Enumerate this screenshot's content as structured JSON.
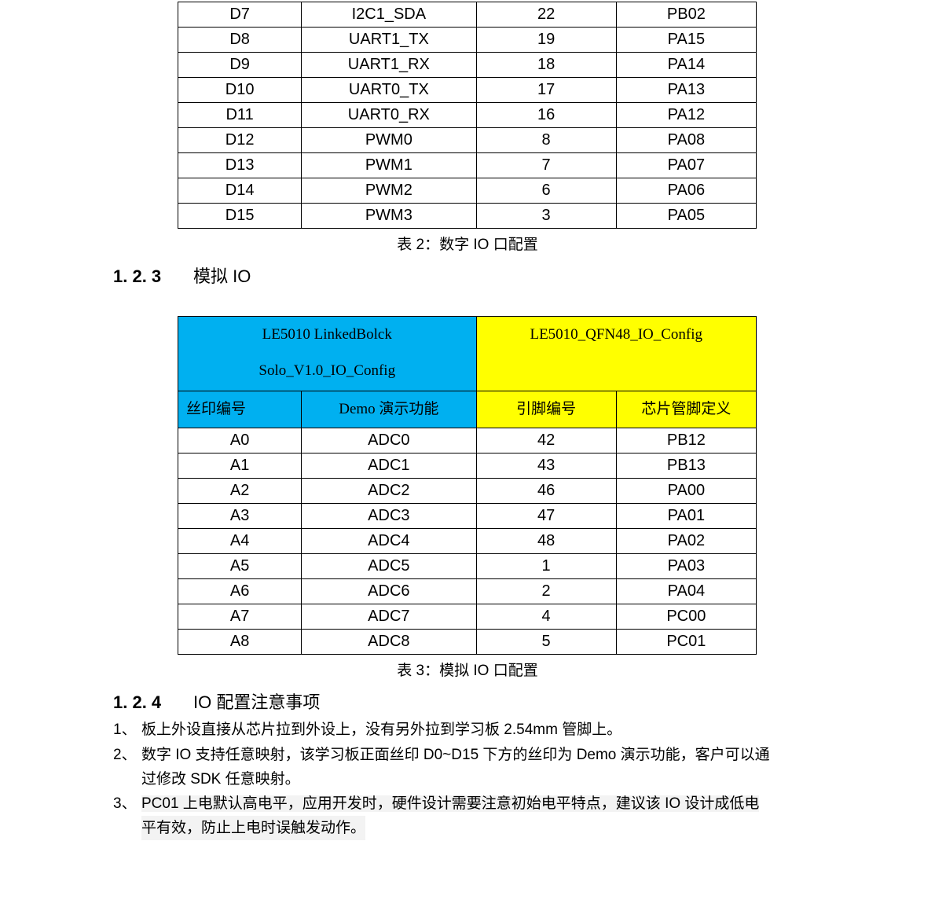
{
  "digital_table": {
    "rows": [
      [
        "D7",
        "I2C1_SDA",
        "22",
        "PB02"
      ],
      [
        "D8",
        "UART1_TX",
        "19",
        "PA15"
      ],
      [
        "D9",
        "UART1_RX",
        "18",
        "PA14"
      ],
      [
        "D10",
        "UART0_TX",
        "17",
        "PA13"
      ],
      [
        "D11",
        "UART0_RX",
        "16",
        "PA12"
      ],
      [
        "D12",
        "PWM0",
        "8",
        "PA08"
      ],
      [
        "D13",
        "PWM1",
        "7",
        "PA07"
      ],
      [
        "D14",
        "PWM2",
        "6",
        "PA06"
      ],
      [
        "D15",
        "PWM3",
        "3",
        "PA05"
      ]
    ],
    "caption": "表 2：数字 IO 口配置"
  },
  "section_123": {
    "number": "1. 2. 3",
    "title": "模拟 IO"
  },
  "analog_table": {
    "group_left_line1": "LE5010 LinkedBolck",
    "group_left_line2": "Solo_V1.0_IO_Config",
    "group_right": "LE5010_QFN48_IO_Config",
    "headers": [
      "丝印编号",
      "Demo 演示功能",
      "引脚编号",
      "芯片管脚定义"
    ],
    "rows": [
      [
        "A0",
        "ADC0",
        "42",
        "PB12"
      ],
      [
        "A1",
        "ADC1",
        "43",
        "PB13"
      ],
      [
        "A2",
        "ADC2",
        "46",
        "PA00"
      ],
      [
        "A3",
        "ADC3",
        "47",
        "PA01"
      ],
      [
        "A4",
        "ADC4",
        "48",
        "PA02"
      ],
      [
        "A5",
        "ADC5",
        "1",
        "PA03"
      ],
      [
        "A6",
        "ADC6",
        "2",
        "PA04"
      ],
      [
        "A7",
        "ADC7",
        "4",
        "PC00"
      ],
      [
        "A8",
        "ADC8",
        "5",
        "PC01"
      ]
    ],
    "caption": "表 3：模拟 IO 口配置",
    "colors": {
      "left_header": "#00b0f0",
      "right_header": "#ffff00"
    }
  },
  "section_124": {
    "number": "1. 2. 4",
    "title": "IO 配置注意事项"
  },
  "notes": [
    {
      "num": "1、",
      "line1": "板上外设直接从芯片拉到外设上，没有另外拉到学习板 2.54mm 管脚上。"
    },
    {
      "num": "2、",
      "line1": "数字 IO 支持任意映射，该学习板正面丝印 D0~D15 下方的丝印为 Demo 演示功能，客户可以通",
      "line2": "过修改 SDK 任意映射。"
    },
    {
      "num": "3、",
      "line1": "PC01 上电默认高电平，应用开发时，硬件设计需要注意初始电平特点，建议该 IO 设计成低电",
      "line2": "平有效，防止上电时误触发动作。"
    }
  ]
}
